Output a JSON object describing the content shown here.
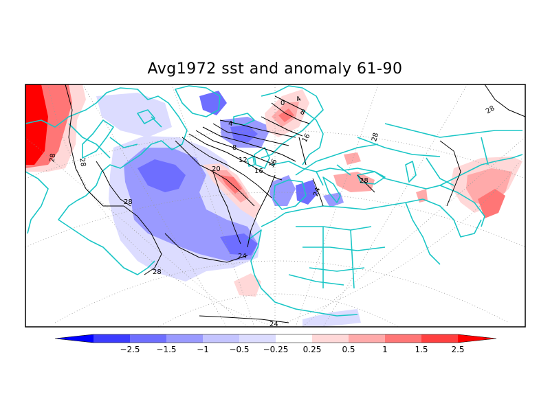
{
  "title": "Avg1972 sst and anomaly 61-90",
  "colorbar": {
    "labels": [
      "−2.5",
      "−1.5",
      "−1",
      "−0.5",
      "−0.25",
      "0.25",
      "0.5",
      "1",
      "1.5",
      "2.5"
    ],
    "colors": [
      "#0000ff",
      "#3c3cff",
      "#6e6eff",
      "#9a9aff",
      "#c4c4ff",
      "#dcdcff",
      "#ffffff",
      "#ffd8d8",
      "#ffaaaa",
      "#ff7676",
      "#ff4040",
      "#ff0000"
    ]
  },
  "contour_labels": [
    "28",
    "28",
    "28",
    "28",
    "28",
    "24",
    "24",
    "24",
    "20",
    "16",
    "16",
    "16",
    "12",
    "8",
    "8",
    "4",
    "4",
    "0",
    "28",
    "28"
  ],
  "colors": {
    "coastline": "#1ac6c6",
    "contour": "#000000",
    "graticule": "#999999"
  }
}
